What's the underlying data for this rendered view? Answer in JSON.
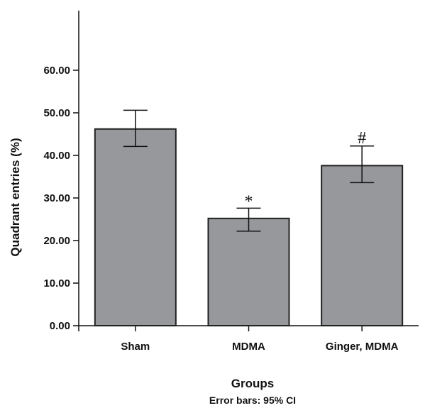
{
  "chart_data": {
    "type": "bar",
    "categories": [
      "Sham",
      "MDMA",
      "Ginger, MDMA"
    ],
    "values": [
      46.2,
      25.2,
      37.6
    ],
    "error_low": [
      42.1,
      22.2,
      33.6
    ],
    "error_high": [
      50.6,
      27.6,
      42.2
    ],
    "significance": [
      "",
      "*",
      "#"
    ],
    "xlabel": "Groups",
    "ylabel": "Quadrant entries (%)",
    "note": "Error bars: 95% CI",
    "ylim": [
      0,
      70
    ],
    "yticks": [
      0,
      10,
      20,
      30,
      40,
      50,
      60
    ],
    "ytick_labels": [
      "0.00",
      "10.00",
      "20.00",
      "30.00",
      "40.00",
      "50.00",
      "60.00"
    ],
    "grid": false,
    "bar_color": "#96989c",
    "edge_color": "#222222"
  }
}
